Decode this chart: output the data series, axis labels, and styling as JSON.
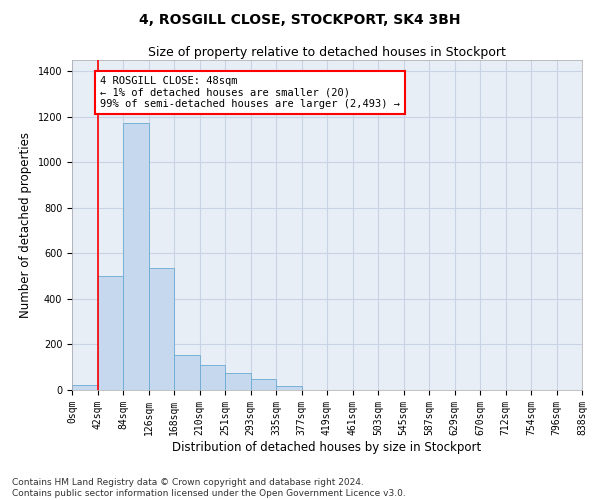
{
  "title": "4, ROSGILL CLOSE, STOCKPORT, SK4 3BH",
  "subtitle": "Size of property relative to detached houses in Stockport",
  "xlabel": "Distribution of detached houses by size in Stockport",
  "ylabel": "Number of detached properties",
  "footnote": "Contains HM Land Registry data © Crown copyright and database right 2024.\nContains public sector information licensed under the Open Government Licence v3.0.",
  "bar_values": [
    20,
    500,
    1175,
    535,
    155,
    110,
    75,
    50,
    18,
    0,
    0,
    0,
    0,
    0,
    0,
    0,
    0,
    0,
    0,
    0
  ],
  "bar_labels": [
    "0sqm",
    "42sqm",
    "84sqm",
    "126sqm",
    "168sqm",
    "210sqm",
    "251sqm",
    "293sqm",
    "335sqm",
    "377sqm",
    "419sqm",
    "461sqm",
    "503sqm",
    "545sqm",
    "587sqm",
    "629sqm",
    "670sqm",
    "712sqm",
    "754sqm",
    "796sqm",
    "838sqm"
  ],
  "bar_color": "#c5d8ee",
  "bar_edgecolor": "#6aaad4",
  "grid_color": "#c8d4e4",
  "background_color": "#e8eef6",
  "annotation_text": "4 ROSGILL CLOSE: 48sqm\n← 1% of detached houses are smaller (20)\n99% of semi-detached houses are larger (2,493) →",
  "vline_x": 1.0,
  "ylim": [
    0,
    1450
  ],
  "yticks": [
    0,
    200,
    400,
    600,
    800,
    1000,
    1200,
    1400
  ],
  "title_fontsize": 10,
  "subtitle_fontsize": 9,
  "annotation_fontsize": 7.5,
  "tick_fontsize": 7,
  "label_fontsize": 8.5,
  "footnote_fontsize": 6.5
}
